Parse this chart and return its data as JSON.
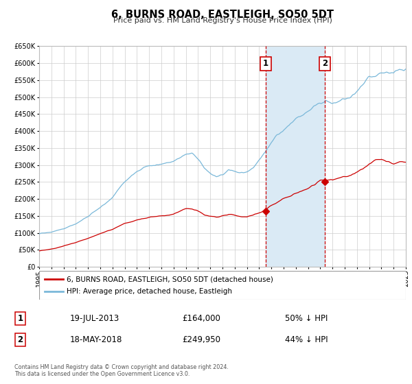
{
  "title": "6, BURNS ROAD, EASTLEIGH, SO50 5DT",
  "subtitle": "Price paid vs. HM Land Registry's House Price Index (HPI)",
  "legend_line1": "6, BURNS ROAD, EASTLEIGH, SO50 5DT (detached house)",
  "legend_line2": "HPI: Average price, detached house, Eastleigh",
  "sale1_date": "19-JUL-2013",
  "sale1_price": "£164,000",
  "sale1_pct": "50% ↓ HPI",
  "sale1_year": 2013.54,
  "sale1_value": 164000,
  "sale2_date": "18-MAY-2018",
  "sale2_price": "£249,950",
  "sale2_pct": "44% ↓ HPI",
  "sale2_year": 2018.37,
  "sale2_value": 249950,
  "hpi_color": "#7ab8d9",
  "price_color": "#cc0000",
  "vline_color": "#cc0000",
  "shade_color": "#daeaf5",
  "background_color": "#ffffff",
  "grid_color": "#cccccc",
  "footer_text": "Contains HM Land Registry data © Crown copyright and database right 2024.\nThis data is licensed under the Open Government Licence v3.0.",
  "ylim": [
    0,
    650000
  ],
  "xlim_start": 1995,
  "xlim_end": 2025,
  "hpi_keypoints": [
    [
      1995.0,
      97000
    ],
    [
      1996.0,
      105000
    ],
    [
      1997.0,
      115000
    ],
    [
      1998.0,
      130000
    ],
    [
      1999.0,
      150000
    ],
    [
      2000.0,
      175000
    ],
    [
      2001.0,
      205000
    ],
    [
      2002.0,
      250000
    ],
    [
      2003.0,
      278000
    ],
    [
      2004.0,
      295000
    ],
    [
      2005.0,
      300000
    ],
    [
      2006.0,
      315000
    ],
    [
      2007.0,
      335000
    ],
    [
      2007.5,
      335000
    ],
    [
      2008.0,
      320000
    ],
    [
      2008.5,
      295000
    ],
    [
      2009.0,
      278000
    ],
    [
      2009.5,
      270000
    ],
    [
      2010.0,
      278000
    ],
    [
      2010.5,
      290000
    ],
    [
      2011.0,
      285000
    ],
    [
      2011.5,
      278000
    ],
    [
      2012.0,
      280000
    ],
    [
      2012.5,
      290000
    ],
    [
      2013.0,
      305000
    ],
    [
      2013.5,
      325000
    ],
    [
      2014.0,
      355000
    ],
    [
      2014.5,
      375000
    ],
    [
      2015.0,
      390000
    ],
    [
      2015.5,
      400000
    ],
    [
      2016.0,
      415000
    ],
    [
      2016.5,
      425000
    ],
    [
      2017.0,
      435000
    ],
    [
      2017.5,
      445000
    ],
    [
      2018.0,
      450000
    ],
    [
      2018.5,
      455000
    ],
    [
      2019.0,
      450000
    ],
    [
      2019.5,
      455000
    ],
    [
      2020.0,
      460000
    ],
    [
      2020.5,
      465000
    ],
    [
      2021.0,
      480000
    ],
    [
      2021.5,
      500000
    ],
    [
      2022.0,
      525000
    ],
    [
      2022.5,
      530000
    ],
    [
      2023.0,
      535000
    ],
    [
      2023.5,
      530000
    ],
    [
      2024.0,
      525000
    ],
    [
      2024.5,
      530000
    ],
    [
      2025.0,
      525000
    ]
  ],
  "price_keypoints": [
    [
      1995.0,
      47000
    ],
    [
      1996.0,
      52000
    ],
    [
      1997.0,
      60000
    ],
    [
      1998.0,
      70000
    ],
    [
      1999.0,
      82000
    ],
    [
      2000.0,
      95000
    ],
    [
      2001.0,
      110000
    ],
    [
      2002.0,
      128000
    ],
    [
      2003.0,
      138000
    ],
    [
      2004.0,
      145000
    ],
    [
      2005.0,
      148000
    ],
    [
      2006.0,
      152000
    ],
    [
      2007.0,
      168000
    ],
    [
      2007.5,
      165000
    ],
    [
      2008.0,
      158000
    ],
    [
      2008.5,
      148000
    ],
    [
      2009.0,
      142000
    ],
    [
      2009.5,
      140000
    ],
    [
      2010.0,
      145000
    ],
    [
      2010.5,
      150000
    ],
    [
      2011.0,
      148000
    ],
    [
      2011.5,
      143000
    ],
    [
      2012.0,
      142000
    ],
    [
      2012.5,
      148000
    ],
    [
      2013.0,
      155000
    ],
    [
      2013.5,
      162000
    ],
    [
      2014.0,
      175000
    ],
    [
      2014.5,
      185000
    ],
    [
      2015.0,
      195000
    ],
    [
      2015.5,
      202000
    ],
    [
      2016.0,
      210000
    ],
    [
      2016.5,
      218000
    ],
    [
      2017.0,
      225000
    ],
    [
      2017.5,
      235000
    ],
    [
      2018.0,
      248000
    ],
    [
      2018.5,
      252000
    ],
    [
      2019.0,
      250000
    ],
    [
      2019.5,
      255000
    ],
    [
      2020.0,
      258000
    ],
    [
      2020.5,
      262000
    ],
    [
      2021.0,
      268000
    ],
    [
      2021.5,
      278000
    ],
    [
      2022.0,
      292000
    ],
    [
      2022.5,
      302000
    ],
    [
      2023.0,
      305000
    ],
    [
      2023.5,
      298000
    ],
    [
      2024.0,
      292000
    ],
    [
      2024.5,
      295000
    ],
    [
      2025.0,
      290000
    ]
  ]
}
